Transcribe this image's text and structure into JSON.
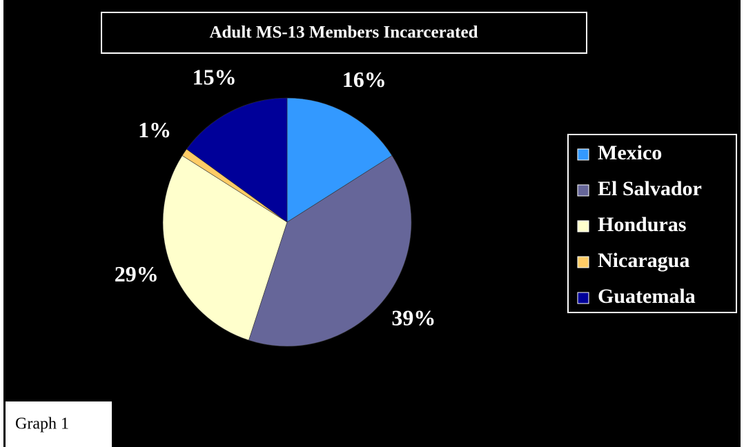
{
  "chart_data": {
    "type": "pie",
    "title": "Adult MS-13 Members Incarcerated",
    "categories": [
      "Mexico",
      "El Salvador",
      "Honduras",
      "Nicaragua",
      "Guatemala"
    ],
    "values": [
      16,
      39,
      29,
      1,
      15
    ],
    "value_labels": [
      "16%",
      "39%",
      "29%",
      "1%",
      "15%"
    ],
    "colors": [
      "#3399ff",
      "#666699",
      "#ffffcc",
      "#ffcc66",
      "#000099"
    ],
    "legend": "right",
    "annotation": "Graph 1"
  }
}
